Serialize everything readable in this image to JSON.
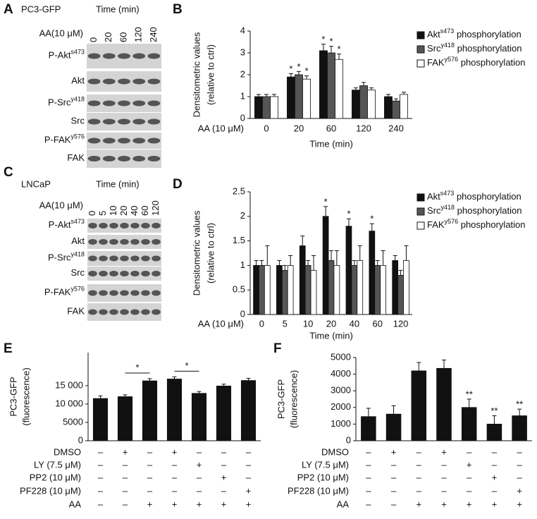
{
  "blots": [
    {
      "panel": "A",
      "cell_line": "PC3-GFP",
      "time_label": "Time (min)",
      "treatment_label": "AA(10 μM)",
      "lanes": [
        "0",
        "20",
        "60",
        "120",
        "240"
      ],
      "rows": [
        {
          "label": [
            "P-Akt",
            "s473"
          ]
        },
        {
          "label": [
            "Akt"
          ]
        },
        {
          "label": [
            "P-Src",
            "y418"
          ]
        },
        {
          "label": [
            "Src"
          ]
        },
        {
          "label": [
            "P-FAK",
            "y576"
          ]
        },
        {
          "label": [
            "FAK"
          ]
        }
      ]
    },
    {
      "panel": "C",
      "cell_line": "LNCaP",
      "time_label": "Time (min)",
      "treatment_label": "AA(10 μM)",
      "lanes": [
        "0",
        "5",
        "10",
        "20",
        "40",
        "60",
        "120"
      ],
      "rows": [
        {
          "label": [
            "P-Akt",
            "s473"
          ]
        },
        {
          "label": [
            "Akt"
          ]
        },
        {
          "label": [
            "P-Src",
            "y418"
          ]
        },
        {
          "label": [
            "Src"
          ]
        },
        {
          "label": [
            "P-FAK",
            "y576"
          ]
        },
        {
          "label": [
            "FAK"
          ]
        }
      ]
    }
  ],
  "chart_data": [
    {
      "type": "bar",
      "panel": "B",
      "ylabel": [
        "Densitometric values",
        "(relative to ctrl)"
      ],
      "xlabel": "Time (min)",
      "treatment_label": "AA (10 μM)",
      "categories": [
        "0",
        "20",
        "60",
        "120",
        "240"
      ],
      "ylim": [
        0,
        4
      ],
      "yticks": [
        0,
        1,
        2,
        3,
        4
      ],
      "series": [
        {
          "name": [
            "Akt",
            "s473",
            " phosphorylation"
          ],
          "color": "#111111",
          "values": [
            1,
            1.9,
            3.1,
            1.3,
            1.0
          ],
          "errors": [
            0.1,
            0.15,
            0.3,
            0.1,
            0.1
          ],
          "significance": [
            null,
            "*",
            "*",
            null,
            null
          ]
        },
        {
          "name": [
            "Src",
            "y418",
            " phosphorylation"
          ],
          "color": "#555555",
          "values": [
            1,
            2.0,
            3.0,
            1.5,
            0.8
          ],
          "errors": [
            0.1,
            0.15,
            0.3,
            0.15,
            0.1
          ],
          "significance": [
            null,
            "*",
            "*",
            null,
            null
          ]
        },
        {
          "name": [
            "FAK",
            "y576",
            " phosphorylation"
          ],
          "color": "#ffffff",
          "values": [
            1,
            1.8,
            2.7,
            1.3,
            1.1
          ],
          "errors": [
            0.1,
            0.15,
            0.25,
            0.1,
            0.1
          ],
          "significance": [
            null,
            "*",
            "*",
            null,
            null
          ]
        }
      ]
    },
    {
      "type": "bar",
      "panel": "D",
      "ylabel": [
        "Densitometric values",
        "(relative to ctrl)"
      ],
      "xlabel": "Time (min)",
      "treatment_label": "AA (10 μM)",
      "categories": [
        "0",
        "5",
        "10",
        "20",
        "40",
        "60",
        "120"
      ],
      "ylim": [
        0,
        2.5
      ],
      "yticks": [
        0,
        0.5,
        1,
        1.5,
        2,
        2.5
      ],
      "series": [
        {
          "name": [
            "Akt",
            "s473",
            " phosphorylation"
          ],
          "color": "#111111",
          "values": [
            1,
            1.0,
            1.4,
            2.0,
            1.8,
            1.7,
            1.1
          ],
          "errors": [
            0.1,
            0.1,
            0.2,
            0.2,
            0.15,
            0.15,
            0.1
          ],
          "significance": [
            null,
            null,
            null,
            "*",
            "*",
            "*",
            null
          ]
        },
        {
          "name": [
            "Src",
            "y418",
            " phosphorylation"
          ],
          "color": "#555555",
          "values": [
            1,
            0.9,
            1.0,
            1.1,
            1.0,
            1.0,
            0.8
          ],
          "errors": [
            0.1,
            0.1,
            0.1,
            0.2,
            0.1,
            0.1,
            0.1
          ],
          "significance": [
            null,
            null,
            null,
            null,
            null,
            null,
            null
          ]
        },
        {
          "name": [
            "FAK",
            "y576",
            " phosphorylation"
          ],
          "color": "#ffffff",
          "values": [
            1,
            1.0,
            0.9,
            1.0,
            1.1,
            1.0,
            1.1
          ],
          "errors": [
            0.4,
            0.2,
            0.3,
            0.3,
            0.3,
            0.3,
            0.3
          ],
          "significance": [
            null,
            null,
            null,
            null,
            null,
            null,
            null
          ]
        }
      ]
    },
    {
      "type": "bar",
      "panel": "E",
      "ylabel": [
        "PC3-GFP",
        "(fluorescence)"
      ],
      "ylim": [
        0,
        24000
      ],
      "yticks": [
        0,
        5000,
        {
          "value": 10000,
          "label": "10 000"
        },
        {
          "value": 15000,
          "label": "15 000"
        }
      ],
      "series": [
        {
          "color": "#111111",
          "values": [
            11500,
            12000,
            16300,
            16800,
            12900,
            14900,
            16400
          ],
          "errors": [
            700,
            500,
            600,
            600,
            500,
            500,
            600
          ],
          "significance": [
            null,
            null,
            null,
            null,
            null,
            null,
            null
          ]
        }
      ],
      "brackets": [
        {
          "between": [
            1,
            2
          ],
          "text": "*"
        },
        {
          "between": [
            3,
            4
          ],
          "text": "*"
        }
      ],
      "conditions": [
        {
          "name": "DMSO",
          "signs": [
            "–",
            "+",
            "–",
            "+",
            "–",
            "–",
            "–"
          ]
        },
        {
          "name": "LY (7.5 μM)",
          "signs": [
            "–",
            "–",
            "–",
            "–",
            "+",
            "–",
            "–"
          ]
        },
        {
          "name": "PP2 (10 μM)",
          "signs": [
            "–",
            "–",
            "–",
            "–",
            "–",
            "+",
            "–"
          ]
        },
        {
          "name": "PF228 (10 μM)",
          "signs": [
            "–",
            "–",
            "–",
            "–",
            "–",
            "–",
            "+"
          ]
        },
        {
          "name": "AA",
          "signs": [
            "–",
            "–",
            "+",
            "+",
            "+",
            "+",
            "+"
          ]
        }
      ]
    },
    {
      "type": "bar",
      "panel": "F",
      "ylabel": [
        "PC3-GFP",
        "(fluorescence)"
      ],
      "ylim": [
        0,
        5000
      ],
      "yticks": [
        0,
        1000,
        2000,
        3000,
        4000,
        5000
      ],
      "series": [
        {
          "color": "#111111",
          "values": [
            1450,
            1600,
            4200,
            4350,
            2000,
            1000,
            1500
          ],
          "errors": [
            500,
            500,
            500,
            500,
            500,
            500,
            400
          ],
          "significance": [
            null,
            null,
            null,
            null,
            "**",
            "**",
            "**"
          ]
        }
      ],
      "conditions": [
        {
          "name": "DMSO",
          "signs": [
            "–",
            "+",
            "–",
            "+",
            "–",
            "–",
            "–"
          ]
        },
        {
          "name": "LY (7.5 μM)",
          "signs": [
            "–",
            "–",
            "–",
            "–",
            "+",
            "–",
            "–"
          ]
        },
        {
          "name": "PP2 (10 μM)",
          "signs": [
            "–",
            "–",
            "–",
            "–",
            "–",
            "+",
            "–"
          ]
        },
        {
          "name": "PF228 (10 μM)",
          "signs": [
            "–",
            "–",
            "–",
            "–",
            "–",
            "–",
            "+"
          ]
        },
        {
          "name": "AA",
          "signs": [
            "–",
            "–",
            "+",
            "+",
            "+",
            "+",
            "+"
          ]
        }
      ]
    }
  ]
}
